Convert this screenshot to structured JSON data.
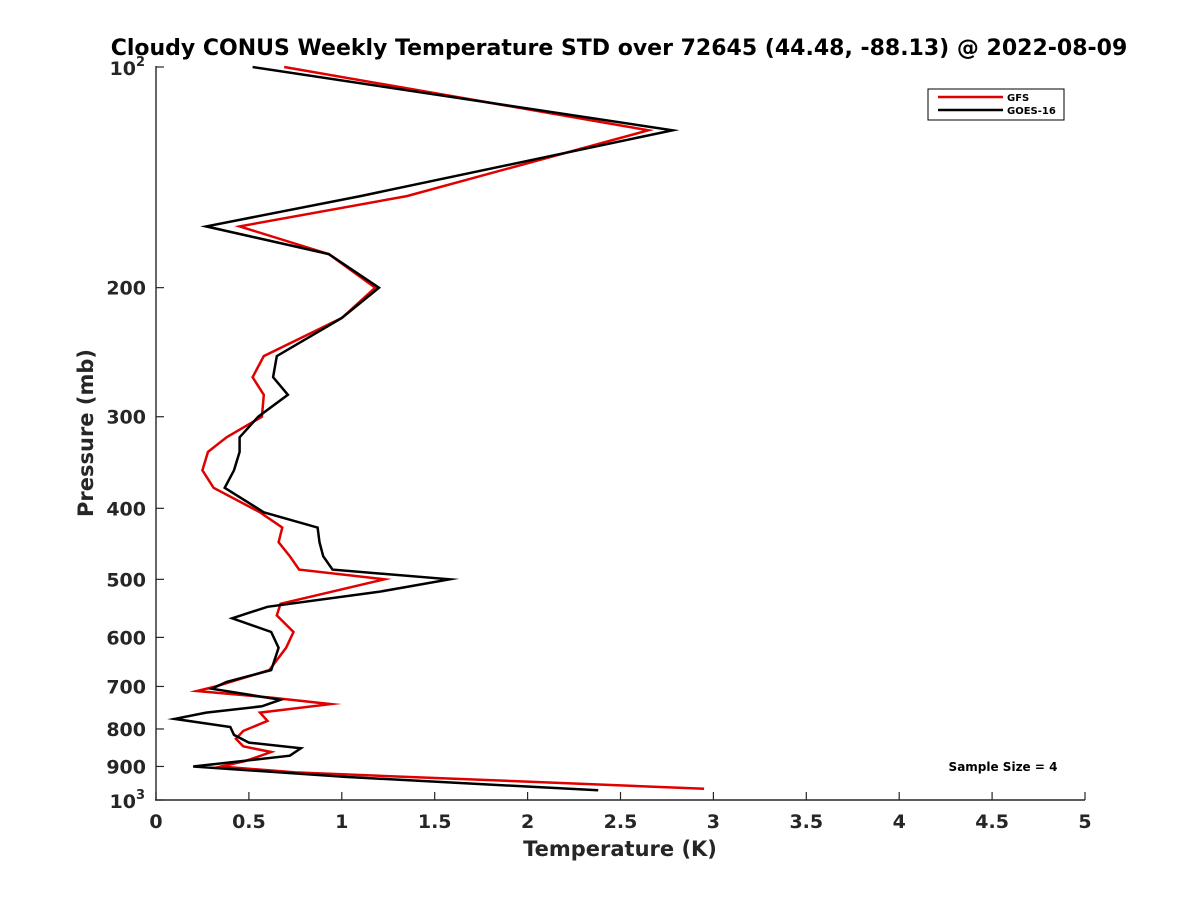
{
  "chart_data": {
    "type": "line",
    "title": "Cloudy CONUS Weekly Temperature STD over 72645 (44.48, -88.13) @ 2022-08-09",
    "xlabel": "Temperature (K)",
    "ylabel": "Pressure (mb)",
    "xlim": [
      0,
      5
    ],
    "ylim": [
      100,
      1000
    ],
    "y_scale": "log",
    "y_reversed": true,
    "x_ticks": [
      "0",
      "0.5",
      "1",
      "1.5",
      "2",
      "2.5",
      "3",
      "3.5",
      "4",
      "4.5",
      "5"
    ],
    "y_ticks": [
      {
        "value": 100,
        "label": "10",
        "exp": "2"
      },
      {
        "value": 200,
        "label": "200"
      },
      {
        "value": 300,
        "label": "300"
      },
      {
        "value": 400,
        "label": "400"
      },
      {
        "value": 500,
        "label": "500"
      },
      {
        "value": 600,
        "label": "600"
      },
      {
        "value": 700,
        "label": "700"
      },
      {
        "value": 800,
        "label": "800"
      },
      {
        "value": 900,
        "label": "900"
      },
      {
        "value": 1000,
        "label": "10",
        "exp": "3"
      }
    ],
    "grid": false,
    "legend_position": "top-right",
    "annotation": "Sample Size = 4",
    "series": [
      {
        "name": "GFS",
        "color": "#e00000",
        "x": [
          0.69,
          2.65,
          1.35,
          0.45,
          0.93,
          1.18,
          1.0,
          0.58,
          0.52,
          0.58,
          0.57,
          0.38,
          0.28,
          0.25,
          0.31,
          0.56,
          0.68,
          0.66,
          0.72,
          0.77,
          1.23,
          0.67,
          0.65,
          0.74,
          0.7,
          0.61,
          0.32,
          0.22,
          0.62,
          0.94,
          0.56,
          0.6,
          0.47,
          0.43,
          0.47,
          0.62,
          0.48,
          0.35,
          0.75,
          2.95
        ],
        "y": [
          100,
          122,
          150,
          165,
          180,
          200,
          220,
          248,
          265,
          280,
          300,
          320,
          335,
          355,
          375,
          405,
          425,
          445,
          465,
          485,
          500,
          540,
          560,
          590,
          620,
          665,
          700,
          710,
          725,
          740,
          760,
          780,
          805,
          825,
          845,
          860,
          885,
          900,
          917,
          965
        ]
      },
      {
        "name": "GOES-16",
        "color": "#000000",
        "x": [
          0.52,
          2.78,
          1.1,
          0.27,
          0.93,
          1.2,
          1.0,
          0.65,
          0.63,
          0.71,
          0.55,
          0.45,
          0.45,
          0.42,
          0.37,
          0.58,
          0.87,
          0.88,
          0.9,
          0.95,
          1.58,
          1.2,
          0.6,
          0.41,
          0.62,
          0.66,
          0.62,
          0.38,
          0.3,
          0.67,
          0.57,
          0.27,
          0.1,
          0.4,
          0.42,
          0.5,
          0.78,
          0.72,
          0.2,
          1.02,
          2.38
        ],
        "y": [
          100,
          122,
          150,
          165,
          180,
          200,
          220,
          248,
          265,
          280,
          300,
          320,
          335,
          355,
          375,
          405,
          425,
          445,
          465,
          485,
          500,
          520,
          545,
          565,
          590,
          620,
          665,
          690,
          705,
          730,
          745,
          760,
          775,
          795,
          815,
          835,
          850,
          870,
          900,
          930,
          970
        ]
      }
    ]
  }
}
